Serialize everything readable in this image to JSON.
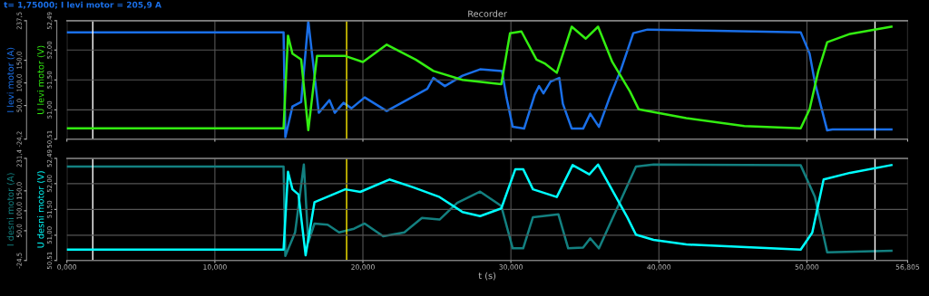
{
  "chart_data": [
    {
      "type": "line",
      "title": "Recorder",
      "annotations": [
        "t= 1,75000; I levi motor = 205,9 A"
      ],
      "ylabel": "I levi motor (A)",
      "y2label": "U levi motor (V)",
      "xlim": [
        0,
        56.805
      ],
      "xticks": [
        {
          "value": 0,
          "label": null
        },
        {
          "value": 10,
          "label": null
        },
        {
          "value": 20,
          "label": null
        },
        {
          "value": 30,
          "label": null
        },
        {
          "value": 40,
          "label": null
        },
        {
          "value": 50,
          "label": null
        },
        {
          "value": 56.805,
          "label": null
        }
      ],
      "ylim": [
        -24.2,
        237.5
      ],
      "yticks": [
        {
          "value": -24.2,
          "label": "-24,2"
        },
        {
          "value": 50,
          "label": "50,0"
        },
        {
          "value": 100,
          "label": "100,0"
        },
        {
          "value": 150,
          "label": "150,0"
        },
        {
          "value": 237.5,
          "label": "237,5"
        }
      ],
      "y2lim": [
        50.51,
        52.49
      ],
      "y2ticks": [
        {
          "value": 50.51,
          "label": "50,51"
        },
        {
          "value": 51,
          "label": "51,00"
        },
        {
          "value": 51.5,
          "label": "51,50"
        },
        {
          "value": 52,
          "label": "52,00"
        },
        {
          "value": 52.49,
          "label": "52,49"
        }
      ],
      "tick_labels": "y",
      "grid": true,
      "ref_lines": [
        {
          "axis": "x",
          "value": 1.75,
          "color": "#ffffff"
        },
        {
          "axis": "x",
          "value": 18.9,
          "color": "#ffee00"
        },
        {
          "axis": "x",
          "value": 54.6,
          "color": "#ffffff"
        }
      ],
      "series": [
        {
          "color": "#1a6fe8",
          "x": [
            0,
            14.64,
            14.76,
            15.24,
            15.83,
            16.31,
            17.02,
            17.74,
            18.1,
            18.69,
            19.23,
            20.12,
            21.61,
            24.35,
            24.76,
            25.54,
            26.73,
            27.92,
            29.4,
            29.7,
            30.12,
            30.89,
            31.61,
            31.9,
            32.2,
            32.68,
            33.27,
            33.51,
            34.11,
            34.88,
            35.36,
            35.95,
            36.67,
            37.44,
            38.27,
            39.23,
            49.58,
            50.18,
            50.54,
            51.37,
            51.73,
            55.71
          ],
          "values": [
            212,
            212,
            -20,
            48,
            58,
            237,
            34,
            62,
            34,
            56,
            44,
            68,
            38,
            87,
            111,
            93,
            116,
            130,
            126,
            68,
            3,
            -1,
            74,
            93,
            77,
            103,
            111,
            54,
            -1,
            -1,
            32,
            3,
            68,
            130,
            210,
            218,
            212,
            165,
            101,
            -5,
            -3,
            -3
          ]
        },
        {
          "color": "#33ee11",
          "axis": "y2",
          "x": [
            0,
            14.64,
            14.94,
            15.24,
            15.83,
            16.31,
            16.9,
            18.81,
            20.0,
            21.61,
            23.57,
            24.76,
            26.73,
            29.35,
            29.94,
            30.71,
            31.73,
            32.32,
            33.1,
            34.11,
            35.06,
            35.89,
            36.85,
            38.04,
            38.63,
            41.85,
            45.77,
            49.58,
            50.18,
            50.77,
            51.37,
            52.92,
            55.71
          ],
          "values": [
            50.69,
            50.69,
            52.24,
            51.94,
            51.84,
            50.66,
            51.9,
            51.9,
            51.8,
            52.09,
            51.84,
            51.65,
            51.5,
            51.43,
            52.28,
            52.31,
            51.84,
            51.77,
            51.62,
            52.39,
            52.19,
            52.39,
            51.8,
            51.31,
            51.01,
            50.86,
            50.73,
            50.69,
            51.01,
            51.65,
            52.13,
            52.27,
            52.39
          ]
        }
      ]
    },
    {
      "type": "line",
      "xlabel": "t (s)",
      "ylabel": "I desni motor (A)",
      "y2label": "U desni motor (V)",
      "xlim": [
        0,
        56.805
      ],
      "xticks": [
        {
          "value": 0,
          "label": "0,000"
        },
        {
          "value": 10,
          "label": "10,000"
        },
        {
          "value": 20,
          "label": "20,000"
        },
        {
          "value": 30,
          "label": "30,000"
        },
        {
          "value": 40,
          "label": "40,000"
        },
        {
          "value": 50,
          "label": "50,000"
        },
        {
          "value": 56.805,
          "label": "56,805"
        }
      ],
      "ylim": [
        -24.5,
        231.4
      ],
      "yticks": [
        {
          "value": -24.5,
          "label": "-24,5"
        },
        {
          "value": 50,
          "label": "50,0"
        },
        {
          "value": 100,
          "label": "100,0"
        },
        {
          "value": 150,
          "label": "150,0"
        },
        {
          "value": 231.4,
          "label": "231,4"
        }
      ],
      "y2lim": [
        50.51,
        52.49
      ],
      "y2ticks": [
        {
          "value": 50.51,
          "label": "50,51"
        },
        {
          "value": 51,
          "label": "51,00"
        },
        {
          "value": 51.5,
          "label": "51,50"
        },
        {
          "value": 52,
          "label": "52,00"
        },
        {
          "value": 52.49,
          "label": "52,49"
        }
      ],
      "grid": true,
      "ref_lines": [
        {
          "axis": "x",
          "value": 1.75,
          "color": "#ffffff"
        },
        {
          "axis": "x",
          "value": 18.9,
          "color": "#ffee00"
        },
        {
          "axis": "x",
          "value": 54.6,
          "color": "#ffffff"
        }
      ],
      "series": [
        {
          "color": "#138080",
          "x": [
            0,
            14.64,
            14.76,
            15.42,
            16.01,
            16.31,
            16.73,
            17.62,
            18.39,
            19.4,
            20.12,
            21.37,
            22.8,
            23.99,
            25.18,
            26.37,
            27.92,
            29.35,
            30.12,
            30.83,
            31.49,
            33.21,
            33.87,
            34.88,
            35.36,
            35.95,
            38.45,
            39.64,
            49.58,
            50.54,
            51.37,
            55.71
          ],
          "values": [
            211,
            211,
            -13,
            46,
            216,
            21,
            68,
            65,
            46,
            55,
            68,
            36,
            46,
            82,
            78,
            120,
            148,
            112,
            6,
            6,
            84,
            91,
            6,
            8,
            31,
            6,
            211,
            216,
            214,
            135,
            -4,
            0
          ]
        },
        {
          "color": "#00ffff",
          "axis": "y2",
          "x": [
            0,
            14.64,
            14.94,
            15.24,
            15.65,
            16.13,
            16.73,
            18.81,
            19.82,
            21.79,
            23.39,
            25.18,
            26.73,
            27.92,
            29.35,
            30.3,
            30.83,
            31.49,
            33.1,
            34.17,
            35.3,
            35.89,
            37.86,
            38.45,
            39.64,
            41.85,
            49.58,
            50.36,
            51.13,
            52.92,
            55.71
          ],
          "values": [
            50.72,
            50.72,
            52.23,
            51.89,
            51.79,
            50.61,
            51.64,
            51.89,
            51.84,
            52.08,
            51.93,
            51.74,
            51.45,
            51.37,
            51.52,
            52.28,
            52.28,
            51.89,
            51.74,
            52.36,
            52.18,
            52.37,
            51.35,
            51.01,
            50.91,
            50.82,
            50.72,
            51.05,
            52.08,
            52.21,
            52.36
          ]
        }
      ]
    }
  ]
}
